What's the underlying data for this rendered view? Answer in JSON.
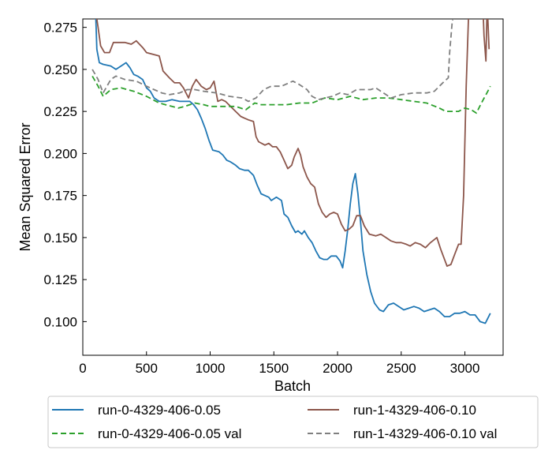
{
  "chart_data": {
    "type": "line",
    "title": "",
    "xlabel": "Batch",
    "ylabel": "Mean Squared Error",
    "xlim": [
      0,
      3300
    ],
    "ylim": [
      0.08,
      0.28
    ],
    "x_ticks": [
      0,
      500,
      1000,
      1500,
      2000,
      2500,
      3000
    ],
    "x_tick_labels": [
      "0",
      "500",
      "1000",
      "1500",
      "2000",
      "2500",
      "3000"
    ],
    "y_ticks": [
      0.1,
      0.125,
      0.15,
      0.175,
      0.2,
      0.225,
      0.25,
      0.275
    ],
    "y_tick_labels": [
      "0.100",
      "0.125",
      "0.150",
      "0.175",
      "0.200",
      "0.225",
      "0.250",
      "0.275"
    ],
    "grid": false,
    "legend_position": "below",
    "series": [
      {
        "name": "run-0-4329-406-0.05",
        "color": "#1f77b4",
        "dash": "solid",
        "points": [
          [
            100,
            0.285
          ],
          [
            110,
            0.262
          ],
          [
            130,
            0.254
          ],
          [
            160,
            0.253
          ],
          [
            220,
            0.252
          ],
          [
            260,
            0.25
          ],
          [
            300,
            0.252
          ],
          [
            340,
            0.254
          ],
          [
            370,
            0.251
          ],
          [
            400,
            0.247
          ],
          [
            430,
            0.246
          ],
          [
            470,
            0.244
          ],
          [
            500,
            0.239
          ],
          [
            530,
            0.237
          ],
          [
            560,
            0.233
          ],
          [
            600,
            0.231
          ],
          [
            650,
            0.231
          ],
          [
            700,
            0.232
          ],
          [
            760,
            0.231
          ],
          [
            800,
            0.231
          ],
          [
            840,
            0.231
          ],
          [
            870,
            0.229
          ],
          [
            900,
            0.226
          ],
          [
            930,
            0.221
          ],
          [
            960,
            0.215
          ],
          [
            990,
            0.208
          ],
          [
            1020,
            0.202
          ],
          [
            1070,
            0.201
          ],
          [
            1100,
            0.199
          ],
          [
            1130,
            0.196
          ],
          [
            1160,
            0.195
          ],
          [
            1200,
            0.193
          ],
          [
            1230,
            0.191
          ],
          [
            1270,
            0.19
          ],
          [
            1300,
            0.19
          ],
          [
            1340,
            0.187
          ],
          [
            1370,
            0.181
          ],
          [
            1400,
            0.176
          ],
          [
            1430,
            0.175
          ],
          [
            1460,
            0.174
          ],
          [
            1480,
            0.172
          ],
          [
            1520,
            0.174
          ],
          [
            1560,
            0.172
          ],
          [
            1580,
            0.164
          ],
          [
            1610,
            0.162
          ],
          [
            1640,
            0.157
          ],
          [
            1670,
            0.153
          ],
          [
            1690,
            0.154
          ],
          [
            1720,
            0.152
          ],
          [
            1740,
            0.154
          ],
          [
            1770,
            0.15
          ],
          [
            1800,
            0.147
          ],
          [
            1830,
            0.142
          ],
          [
            1860,
            0.138
          ],
          [
            1890,
            0.137
          ],
          [
            1920,
            0.137
          ],
          [
            1950,
            0.139
          ],
          [
            1990,
            0.139
          ],
          [
            2020,
            0.136
          ],
          [
            2040,
            0.132
          ],
          [
            2060,
            0.142
          ],
          [
            2080,
            0.155
          ],
          [
            2100,
            0.17
          ],
          [
            2120,
            0.182
          ],
          [
            2140,
            0.188
          ],
          [
            2160,
            0.176
          ],
          [
            2180,
            0.16
          ],
          [
            2200,
            0.142
          ],
          [
            2230,
            0.128
          ],
          [
            2260,
            0.118
          ],
          [
            2290,
            0.111
          ],
          [
            2330,
            0.107
          ],
          [
            2360,
            0.106
          ],
          [
            2400,
            0.11
          ],
          [
            2440,
            0.111
          ],
          [
            2480,
            0.109
          ],
          [
            2520,
            0.107
          ],
          [
            2560,
            0.108
          ],
          [
            2600,
            0.109
          ],
          [
            2640,
            0.108
          ],
          [
            2680,
            0.106
          ],
          [
            2720,
            0.107
          ],
          [
            2760,
            0.108
          ],
          [
            2800,
            0.106
          ],
          [
            2840,
            0.103
          ],
          [
            2880,
            0.103
          ],
          [
            2920,
            0.105
          ],
          [
            2960,
            0.105
          ],
          [
            3000,
            0.106
          ],
          [
            3040,
            0.104
          ],
          [
            3080,
            0.104
          ],
          [
            3120,
            0.1
          ],
          [
            3160,
            0.099
          ],
          [
            3200,
            0.105
          ]
        ]
      },
      {
        "name": "run-1-4329-406-0.10",
        "color": "#8c564b",
        "dash": "solid",
        "points": [
          [
            100,
            0.285
          ],
          [
            120,
            0.275
          ],
          [
            140,
            0.264
          ],
          [
            170,
            0.26
          ],
          [
            210,
            0.26
          ],
          [
            240,
            0.266
          ],
          [
            280,
            0.266
          ],
          [
            330,
            0.266
          ],
          [
            380,
            0.265
          ],
          [
            420,
            0.267
          ],
          [
            470,
            0.263
          ],
          [
            500,
            0.26
          ],
          [
            550,
            0.259
          ],
          [
            600,
            0.258
          ],
          [
            630,
            0.249
          ],
          [
            680,
            0.245
          ],
          [
            720,
            0.242
          ],
          [
            760,
            0.242
          ],
          [
            790,
            0.239
          ],
          [
            830,
            0.233
          ],
          [
            860,
            0.24
          ],
          [
            890,
            0.244
          ],
          [
            930,
            0.24
          ],
          [
            970,
            0.238
          ],
          [
            1000,
            0.239
          ],
          [
            1030,
            0.243
          ],
          [
            1060,
            0.231
          ],
          [
            1090,
            0.232
          ],
          [
            1120,
            0.231
          ],
          [
            1160,
            0.228
          ],
          [
            1200,
            0.225
          ],
          [
            1240,
            0.222
          ],
          [
            1270,
            0.221
          ],
          [
            1300,
            0.22
          ],
          [
            1340,
            0.219
          ],
          [
            1360,
            0.21
          ],
          [
            1380,
            0.207
          ],
          [
            1430,
            0.205
          ],
          [
            1460,
            0.206
          ],
          [
            1490,
            0.204
          ],
          [
            1520,
            0.204
          ],
          [
            1550,
            0.201
          ],
          [
            1580,
            0.196
          ],
          [
            1610,
            0.191
          ],
          [
            1640,
            0.193
          ],
          [
            1660,
            0.198
          ],
          [
            1690,
            0.203
          ],
          [
            1710,
            0.199
          ],
          [
            1730,
            0.192
          ],
          [
            1760,
            0.186
          ],
          [
            1790,
            0.182
          ],
          [
            1820,
            0.18
          ],
          [
            1850,
            0.17
          ],
          [
            1880,
            0.165
          ],
          [
            1910,
            0.162
          ],
          [
            1940,
            0.164
          ],
          [
            1970,
            0.165
          ],
          [
            2000,
            0.164
          ],
          [
            2030,
            0.158
          ],
          [
            2060,
            0.154
          ],
          [
            2090,
            0.155
          ],
          [
            2120,
            0.157
          ],
          [
            2150,
            0.163
          ],
          [
            2180,
            0.163
          ],
          [
            2210,
            0.157
          ],
          [
            2250,
            0.152
          ],
          [
            2300,
            0.151
          ],
          [
            2340,
            0.152
          ],
          [
            2380,
            0.15
          ],
          [
            2420,
            0.148
          ],
          [
            2460,
            0.147
          ],
          [
            2500,
            0.147
          ],
          [
            2540,
            0.146
          ],
          [
            2570,
            0.145
          ],
          [
            2610,
            0.147
          ],
          [
            2650,
            0.146
          ],
          [
            2690,
            0.144
          ],
          [
            2730,
            0.147
          ],
          [
            2780,
            0.15
          ],
          [
            2810,
            0.143
          ],
          [
            2840,
            0.137
          ],
          [
            2860,
            0.133
          ],
          [
            2890,
            0.134
          ],
          [
            2920,
            0.14
          ],
          [
            2950,
            0.146
          ],
          [
            2970,
            0.146
          ],
          [
            2990,
            0.175
          ],
          [
            3010,
            0.24
          ],
          [
            3030,
            0.285
          ],
          [
            3100,
            0.285
          ],
          [
            3140,
            0.29
          ],
          [
            3150,
            0.27
          ],
          [
            3165,
            0.255
          ],
          [
            3175,
            0.29
          ],
          [
            3190,
            0.262
          ]
        ]
      },
      {
        "name": "run-0-4329-406-0.05 val",
        "color": "#2ca02c",
        "dash": "dashed",
        "points": [
          [
            75,
            0.246
          ],
          [
            120,
            0.24
          ],
          [
            160,
            0.234
          ],
          [
            220,
            0.238
          ],
          [
            300,
            0.239
          ],
          [
            400,
            0.237
          ],
          [
            500,
            0.234
          ],
          [
            600,
            0.23
          ],
          [
            700,
            0.228
          ],
          [
            750,
            0.227
          ],
          [
            800,
            0.228
          ],
          [
            880,
            0.23
          ],
          [
            950,
            0.229
          ],
          [
            1000,
            0.228
          ],
          [
            1100,
            0.228
          ],
          [
            1200,
            0.228
          ],
          [
            1280,
            0.226
          ],
          [
            1350,
            0.23
          ],
          [
            1400,
            0.229
          ],
          [
            1500,
            0.229
          ],
          [
            1600,
            0.229
          ],
          [
            1700,
            0.23
          ],
          [
            1800,
            0.23
          ],
          [
            1900,
            0.233
          ],
          [
            2000,
            0.232
          ],
          [
            2100,
            0.234
          ],
          [
            2200,
            0.232
          ],
          [
            2300,
            0.233
          ],
          [
            2400,
            0.233
          ],
          [
            2500,
            0.232
          ],
          [
            2600,
            0.231
          ],
          [
            2700,
            0.23
          ],
          [
            2800,
            0.227
          ],
          [
            2850,
            0.225
          ],
          [
            2900,
            0.225
          ],
          [
            2950,
            0.225
          ],
          [
            3000,
            0.227
          ],
          [
            3050,
            0.226
          ],
          [
            3090,
            0.224
          ],
          [
            3130,
            0.23
          ],
          [
            3180,
            0.237
          ],
          [
            3200,
            0.24
          ]
        ]
      },
      {
        "name": "run-1-4329-406-0.10 val",
        "color": "#7f7f7f",
        "dash": "dashed",
        "points": [
          [
            75,
            0.25
          ],
          [
            120,
            0.244
          ],
          [
            160,
            0.236
          ],
          [
            220,
            0.244
          ],
          [
            260,
            0.246
          ],
          [
            330,
            0.244
          ],
          [
            420,
            0.243
          ],
          [
            500,
            0.24
          ],
          [
            560,
            0.238
          ],
          [
            620,
            0.236
          ],
          [
            680,
            0.235
          ],
          [
            760,
            0.236
          ],
          [
            820,
            0.238
          ],
          [
            880,
            0.238
          ],
          [
            950,
            0.237
          ],
          [
            1050,
            0.236
          ],
          [
            1150,
            0.234
          ],
          [
            1250,
            0.233
          ],
          [
            1300,
            0.231
          ],
          [
            1360,
            0.233
          ],
          [
            1420,
            0.238
          ],
          [
            1480,
            0.24
          ],
          [
            1560,
            0.24
          ],
          [
            1620,
            0.242
          ],
          [
            1650,
            0.243
          ],
          [
            1700,
            0.241
          ],
          [
            1760,
            0.238
          ],
          [
            1800,
            0.234
          ],
          [
            1850,
            0.232
          ],
          [
            1900,
            0.233
          ],
          [
            1960,
            0.234
          ],
          [
            2020,
            0.236
          ],
          [
            2080,
            0.235
          ],
          [
            2150,
            0.238
          ],
          [
            2200,
            0.238
          ],
          [
            2260,
            0.238
          ],
          [
            2300,
            0.239
          ],
          [
            2360,
            0.236
          ],
          [
            2420,
            0.233
          ],
          [
            2500,
            0.235
          ],
          [
            2600,
            0.236
          ],
          [
            2700,
            0.236
          ],
          [
            2760,
            0.237
          ],
          [
            2800,
            0.24
          ],
          [
            2840,
            0.243
          ],
          [
            2870,
            0.245
          ],
          [
            2880,
            0.26
          ],
          [
            2900,
            0.278
          ],
          [
            2920,
            0.285
          ],
          [
            2960,
            0.285
          ]
        ]
      }
    ]
  }
}
